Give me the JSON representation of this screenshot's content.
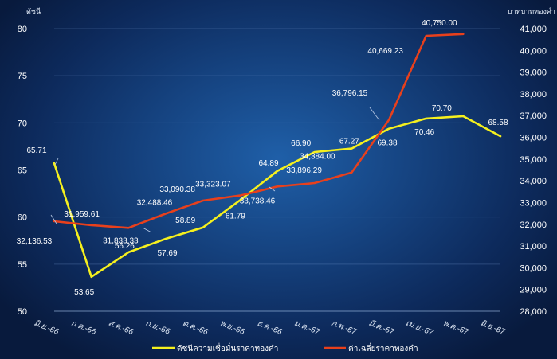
{
  "chart_data": {
    "type": "line",
    "left_axis_title": "ดัชนี",
    "right_axis_title": "บาทบาททองคำ",
    "categories": [
      "มิ.ย.-66",
      "ก.ค.-66",
      "ส.ค.-66",
      "ก.ย.-66",
      "ต.ค.-66",
      "พ.ย.-66",
      "ธ.ค.-66",
      "ม.ค.-67",
      "ก.พ.-67",
      "มี.ค.-67",
      "เม.ย.-67",
      "พ.ค.-67",
      "มิ.ย.-67"
    ],
    "y_left": {
      "min": 50,
      "max": 80,
      "ticks": [
        "50",
        "55",
        "60",
        "65",
        "70",
        "75",
        "80"
      ]
    },
    "y_right": {
      "min": 28000,
      "max": 41000,
      "ticks": [
        "28,000",
        "29,000",
        "30,000",
        "31,000",
        "32,000",
        "33,000",
        "34,000",
        "35,000",
        "36,000",
        "37,000",
        "38,000",
        "39,000",
        "40,000",
        "41,000"
      ]
    },
    "grid": true,
    "legend_position": "bottom",
    "series": [
      {
        "name": "ดัชนีความเชื่อมั่นราคาทองคำ",
        "axis": "left",
        "color": "#f5f01e",
        "values": [
          65.71,
          53.65,
          56.26,
          57.69,
          58.89,
          61.79,
          64.89,
          66.9,
          67.27,
          69.38,
          70.46,
          70.7,
          68.58
        ],
        "labels": [
          "65.71",
          "53.65",
          "56.26",
          "57.69",
          "58.89",
          "61.79",
          "64.89",
          "66.90",
          "67.27",
          "69.38",
          "70.46",
          "70.70",
          "68.58"
        ]
      },
      {
        "name": "ค่าเฉลี่ยราคาทองคำ",
        "axis": "right",
        "color": "#e8401c",
        "values": [
          32136.53,
          31959.61,
          31833.33,
          32488.46,
          33090.38,
          33323.07,
          33738.46,
          33896.29,
          34384.0,
          36796.15,
          40669.23,
          40750.0,
          null
        ],
        "labels": [
          "32,136.53",
          "31,959.61",
          "31,833.33",
          "32,488.46",
          "33,090.38",
          "33,323.07",
          "33,738.46",
          "33,896.29",
          "34,384.00",
          "36,796.15",
          "40,669.23",
          "40,750.00",
          ""
        ]
      }
    ]
  }
}
